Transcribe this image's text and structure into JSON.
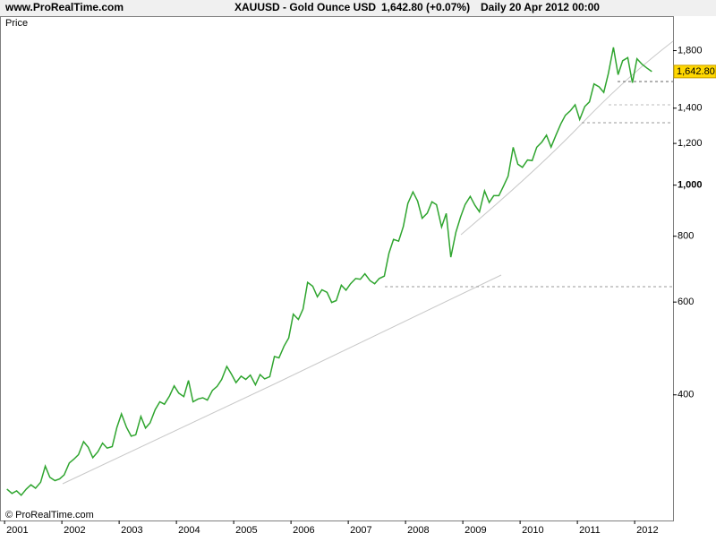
{
  "header": {
    "site": "www.ProRealTime.com",
    "instrument": "XAUUSD - Gold Ounce USD",
    "quote": "1,642.80 (+0.07%)",
    "period": "Daily  20 Apr 2012 00:00"
  },
  "chart_data": {
    "type": "line",
    "y_label": "Price",
    "copyright": "© ProRealTime.com",
    "log_scale": true,
    "color": "#2fa52f",
    "last_value": {
      "value": 1642.8,
      "label": "1,642.80"
    },
    "xlim": [
      2000.92,
      2012.67
    ],
    "xticks": [
      2001,
      2002,
      2003,
      2004,
      2005,
      2006,
      2007,
      2008,
      2009,
      2010,
      2011,
      2012
    ],
    "ylim": [
      231,
      2093
    ],
    "yticks": [
      400,
      600,
      800,
      {
        "value": 1000,
        "label": "1,000"
      },
      {
        "value": 1200,
        "label": "1,200"
      },
      {
        "value": 1400,
        "label": "1,400"
      },
      {
        "value": 1800,
        "label": "1,800"
      }
    ],
    "x": [
      2001.04,
      2001.13,
      2001.21,
      2001.29,
      2001.38,
      2001.46,
      2001.54,
      2001.63,
      2001.71,
      2001.79,
      2001.88,
      2001.96,
      2002.04,
      2002.13,
      2002.21,
      2002.29,
      2002.38,
      2002.46,
      2002.54,
      2002.63,
      2002.71,
      2002.79,
      2002.88,
      2002.96,
      2003.04,
      2003.13,
      2003.21,
      2003.29,
      2003.38,
      2003.46,
      2003.54,
      2003.63,
      2003.71,
      2003.79,
      2003.88,
      2003.96,
      2004.04,
      2004.13,
      2004.21,
      2004.29,
      2004.38,
      2004.46,
      2004.54,
      2004.63,
      2004.71,
      2004.79,
      2004.88,
      2004.96,
      2005.04,
      2005.13,
      2005.21,
      2005.29,
      2005.38,
      2005.46,
      2005.54,
      2005.63,
      2005.71,
      2005.79,
      2005.88,
      2005.96,
      2006.04,
      2006.13,
      2006.21,
      2006.29,
      2006.38,
      2006.46,
      2006.54,
      2006.63,
      2006.71,
      2006.79,
      2006.88,
      2006.96,
      2007.04,
      2007.13,
      2007.21,
      2007.29,
      2007.38,
      2007.46,
      2007.54,
      2007.63,
      2007.71,
      2007.79,
      2007.88,
      2007.96,
      2008.04,
      2008.13,
      2008.21,
      2008.29,
      2008.38,
      2008.46,
      2008.54,
      2008.63,
      2008.71,
      2008.79,
      2008.88,
      2008.96,
      2009.04,
      2009.13,
      2009.21,
      2009.29,
      2009.38,
      2009.46,
      2009.54,
      2009.63,
      2009.71,
      2009.79,
      2009.88,
      2009.96,
      2010.04,
      2010.13,
      2010.21,
      2010.29,
      2010.38,
      2010.46,
      2010.54,
      2010.63,
      2010.71,
      2010.79,
      2010.88,
      2010.96,
      2011.04,
      2011.13,
      2011.21,
      2011.29,
      2011.38,
      2011.46,
      2011.54,
      2011.63,
      2011.71,
      2011.79,
      2011.88,
      2011.96,
      2012.04,
      2012.13,
      2012.21,
      2012.3
    ],
    "values": [
      265,
      260,
      263,
      258,
      265,
      270,
      266,
      273,
      293,
      279,
      275,
      277,
      282,
      297,
      302,
      308,
      326,
      318,
      304,
      312,
      324,
      317,
      319,
      347,
      368,
      347,
      334,
      336,
      364,
      346,
      354,
      375,
      388,
      384,
      398,
      416,
      403,
      397,
      426,
      388,
      393,
      395,
      391,
      408,
      415,
      428,
      453,
      438,
      422,
      434,
      428,
      436,
      418,
      437,
      429,
      433,
      473,
      470,
      495,
      513,
      569,
      556,
      582,
      654,
      643,
      614,
      633,
      626,
      599,
      604,
      646,
      632,
      650,
      665,
      663,
      679,
      659,
      650,
      665,
      672,
      743,
      789,
      783,
      834,
      923,
      971,
      933,
      865,
      885,
      930,
      918,
      833,
      884,
      730,
      814,
      870,
      919,
      952,
      916,
      890,
      975,
      927,
      955,
      955,
      996,
      1040,
      1180,
      1096,
      1081,
      1116,
      1113,
      1180,
      1207,
      1244,
      1181,
      1247,
      1307,
      1357,
      1385,
      1421,
      1332,
      1410,
      1439,
      1556,
      1536,
      1500,
      1628,
      1826,
      1620,
      1722,
      1746,
      1564,
      1737,
      1696,
      1669,
      1642.8
    ]
  }
}
